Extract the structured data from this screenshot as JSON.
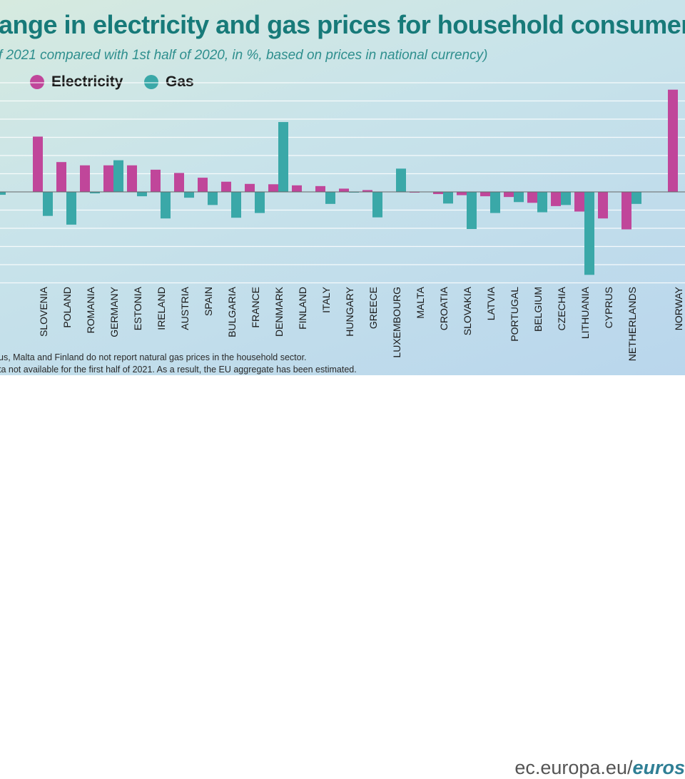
{
  "header": {
    "title": "ange in electricity and gas prices for household consumers",
    "subtitle": "f 2021 compared with 1st half of 2020, in %, based on prices in national currency)"
  },
  "legend": {
    "electricity_label": "Electricity",
    "gas_label": "Gas"
  },
  "notes": {
    "line1": "us, Malta and Finland do not report natural gas prices in the household sector.",
    "line2": "ta not available for the first half of 2021. As a result, the EU aggregate has been estimated."
  },
  "footer": {
    "url_plain": "ec.europa.eu/",
    "url_strong": "euros"
  },
  "colors": {
    "electricity": "#c0469a",
    "gas": "#3aa8a8",
    "title": "#177a79"
  },
  "chart_data": {
    "type": "bar",
    "categories": [
      "",
      "SLOVENIA",
      "POLAND",
      "ROMANIA",
      "GERMANY",
      "ESTONIA",
      "IRELAND",
      "AUSTRIA",
      "SPAIN",
      "BULGARIA",
      "FRANCE",
      "DENMARK",
      "FINLAND",
      "ITALY",
      "HUNGARY",
      "GREECE",
      "LUXEMBOURG",
      "MALTA",
      "CROATIA",
      "SLOVAKIA",
      "LATVIA",
      "PORTUGAL",
      "BELGIUM",
      "CZECHIA",
      "LITHUANIA",
      "CYPRUS",
      "NETHERLANDS",
      "NORWAY"
    ],
    "series": [
      {
        "name": "Electricity",
        "values": [
          null,
          15.2,
          8.2,
          7.3,
          7.3,
          7.3,
          6.1,
          5.2,
          3.9,
          2.8,
          2.2,
          2.1,
          1.8,
          1.6,
          0.9,
          0.5,
          null,
          -0.2,
          -0.6,
          -0.9,
          -1.2,
          -1.4,
          -3.0,
          -3.9,
          -5.4,
          -7.3,
          -10.3,
          28.1
        ]
      },
      {
        "name": "Gas",
        "values": [
          -0.8,
          -6.6,
          -9.0,
          -0.4,
          8.7,
          -1.2,
          -7.3,
          -1.6,
          -3.6,
          -7.1,
          -5.8,
          19.2,
          null,
          -3.3,
          -0.2,
          -7.0,
          6.4,
          null,
          -3.2,
          -10.2,
          -5.8,
          -2.8,
          -5.6,
          -3.6,
          -22.8,
          null,
          -3.3,
          null
        ]
      }
    ],
    "ylim": [
      -25,
      30
    ],
    "grid": true,
    "legend_position": "top-left"
  }
}
